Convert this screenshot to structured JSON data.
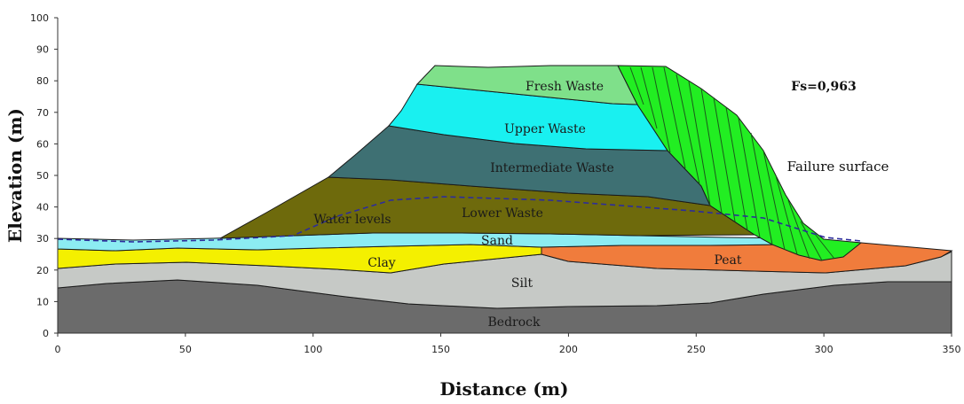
{
  "axes": {
    "x_title": "Distance (m)",
    "y_title": "Elevation (m)",
    "x_ticks": [
      "0",
      "50",
      "100",
      "150",
      "200",
      "250",
      "300",
      "350"
    ],
    "y_ticks": [
      "0",
      "10",
      "20",
      "30",
      "40",
      "50",
      "60",
      "70",
      "80",
      "90",
      "100"
    ]
  },
  "layer_labels": {
    "fresh_waste": "Fresh Waste",
    "upper_waste": "Upper Waste",
    "intermediate_waste": "Intermediate Waste",
    "lower_waste": "Lower Waste",
    "water_levels": "Water levels",
    "sand": "Sand",
    "clay": "Clay",
    "peat": "Peat",
    "silt": "Silt",
    "bedrock": "Bedrock"
  },
  "annotations": {
    "failure_surface": "Failure surface",
    "factor_of_safety": "Fs=0,963"
  },
  "colors": {
    "fresh_waste": "#7fe08a",
    "upper_waste": "#19f0f0",
    "intermediate_waste": "#3e7073",
    "lower_waste": "#6e6a0c",
    "sand": "#8cecf2",
    "clay": "#f4f000",
    "peat": "#f07c3c",
    "silt": "#c6c9c6",
    "bedrock": "#6b6b6b",
    "failure_wedge": "#22ee22",
    "water_line": "#2c2c9c"
  }
}
